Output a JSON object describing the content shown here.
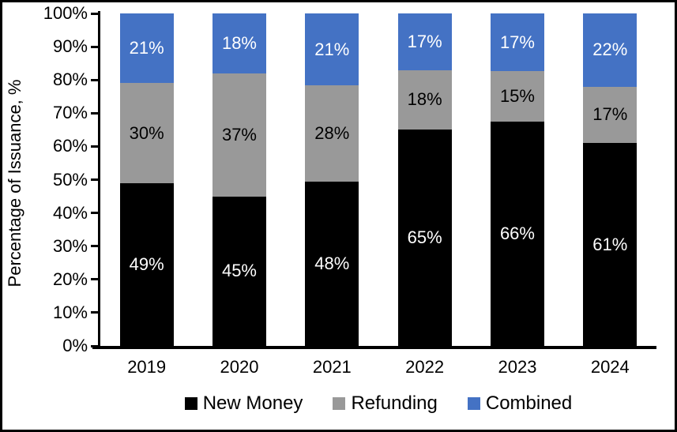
{
  "chart_data": {
    "type": "bar",
    "stacked": true,
    "title": "",
    "xlabel": "",
    "ylabel": "Percentage of Issuance, %",
    "ylim": [
      0,
      100
    ],
    "grid": false,
    "legend_position": "bottom",
    "yticks": [
      "0%",
      "10%",
      "20%",
      "30%",
      "40%",
      "50%",
      "60%",
      "70%",
      "80%",
      "90%",
      "100%"
    ],
    "categories": [
      "2019",
      "2020",
      "2021",
      "2022",
      "2023",
      "2024"
    ],
    "series": [
      {
        "name": "New Money",
        "color": "#000000",
        "label_color": "#ffffff",
        "values": [
          49,
          45,
          48,
          65,
          66,
          61
        ],
        "labels": [
          "49%",
          "45%",
          "48%",
          "65%",
          "66%",
          "61%"
        ]
      },
      {
        "name": "Refunding",
        "color": "#999999",
        "label_color": "#000000",
        "values": [
          30,
          37,
          28,
          18,
          15,
          17
        ],
        "labels": [
          "30%",
          "37%",
          "28%",
          "18%",
          "15%",
          "17%"
        ]
      },
      {
        "name": "Combined",
        "color": "#4472C4",
        "label_color": "#ffffff",
        "values": [
          21,
          18,
          21,
          17,
          17,
          22
        ],
        "labels": [
          "21%",
          "18%",
          "21%",
          "17%",
          "17%",
          "22%"
        ]
      }
    ]
  }
}
